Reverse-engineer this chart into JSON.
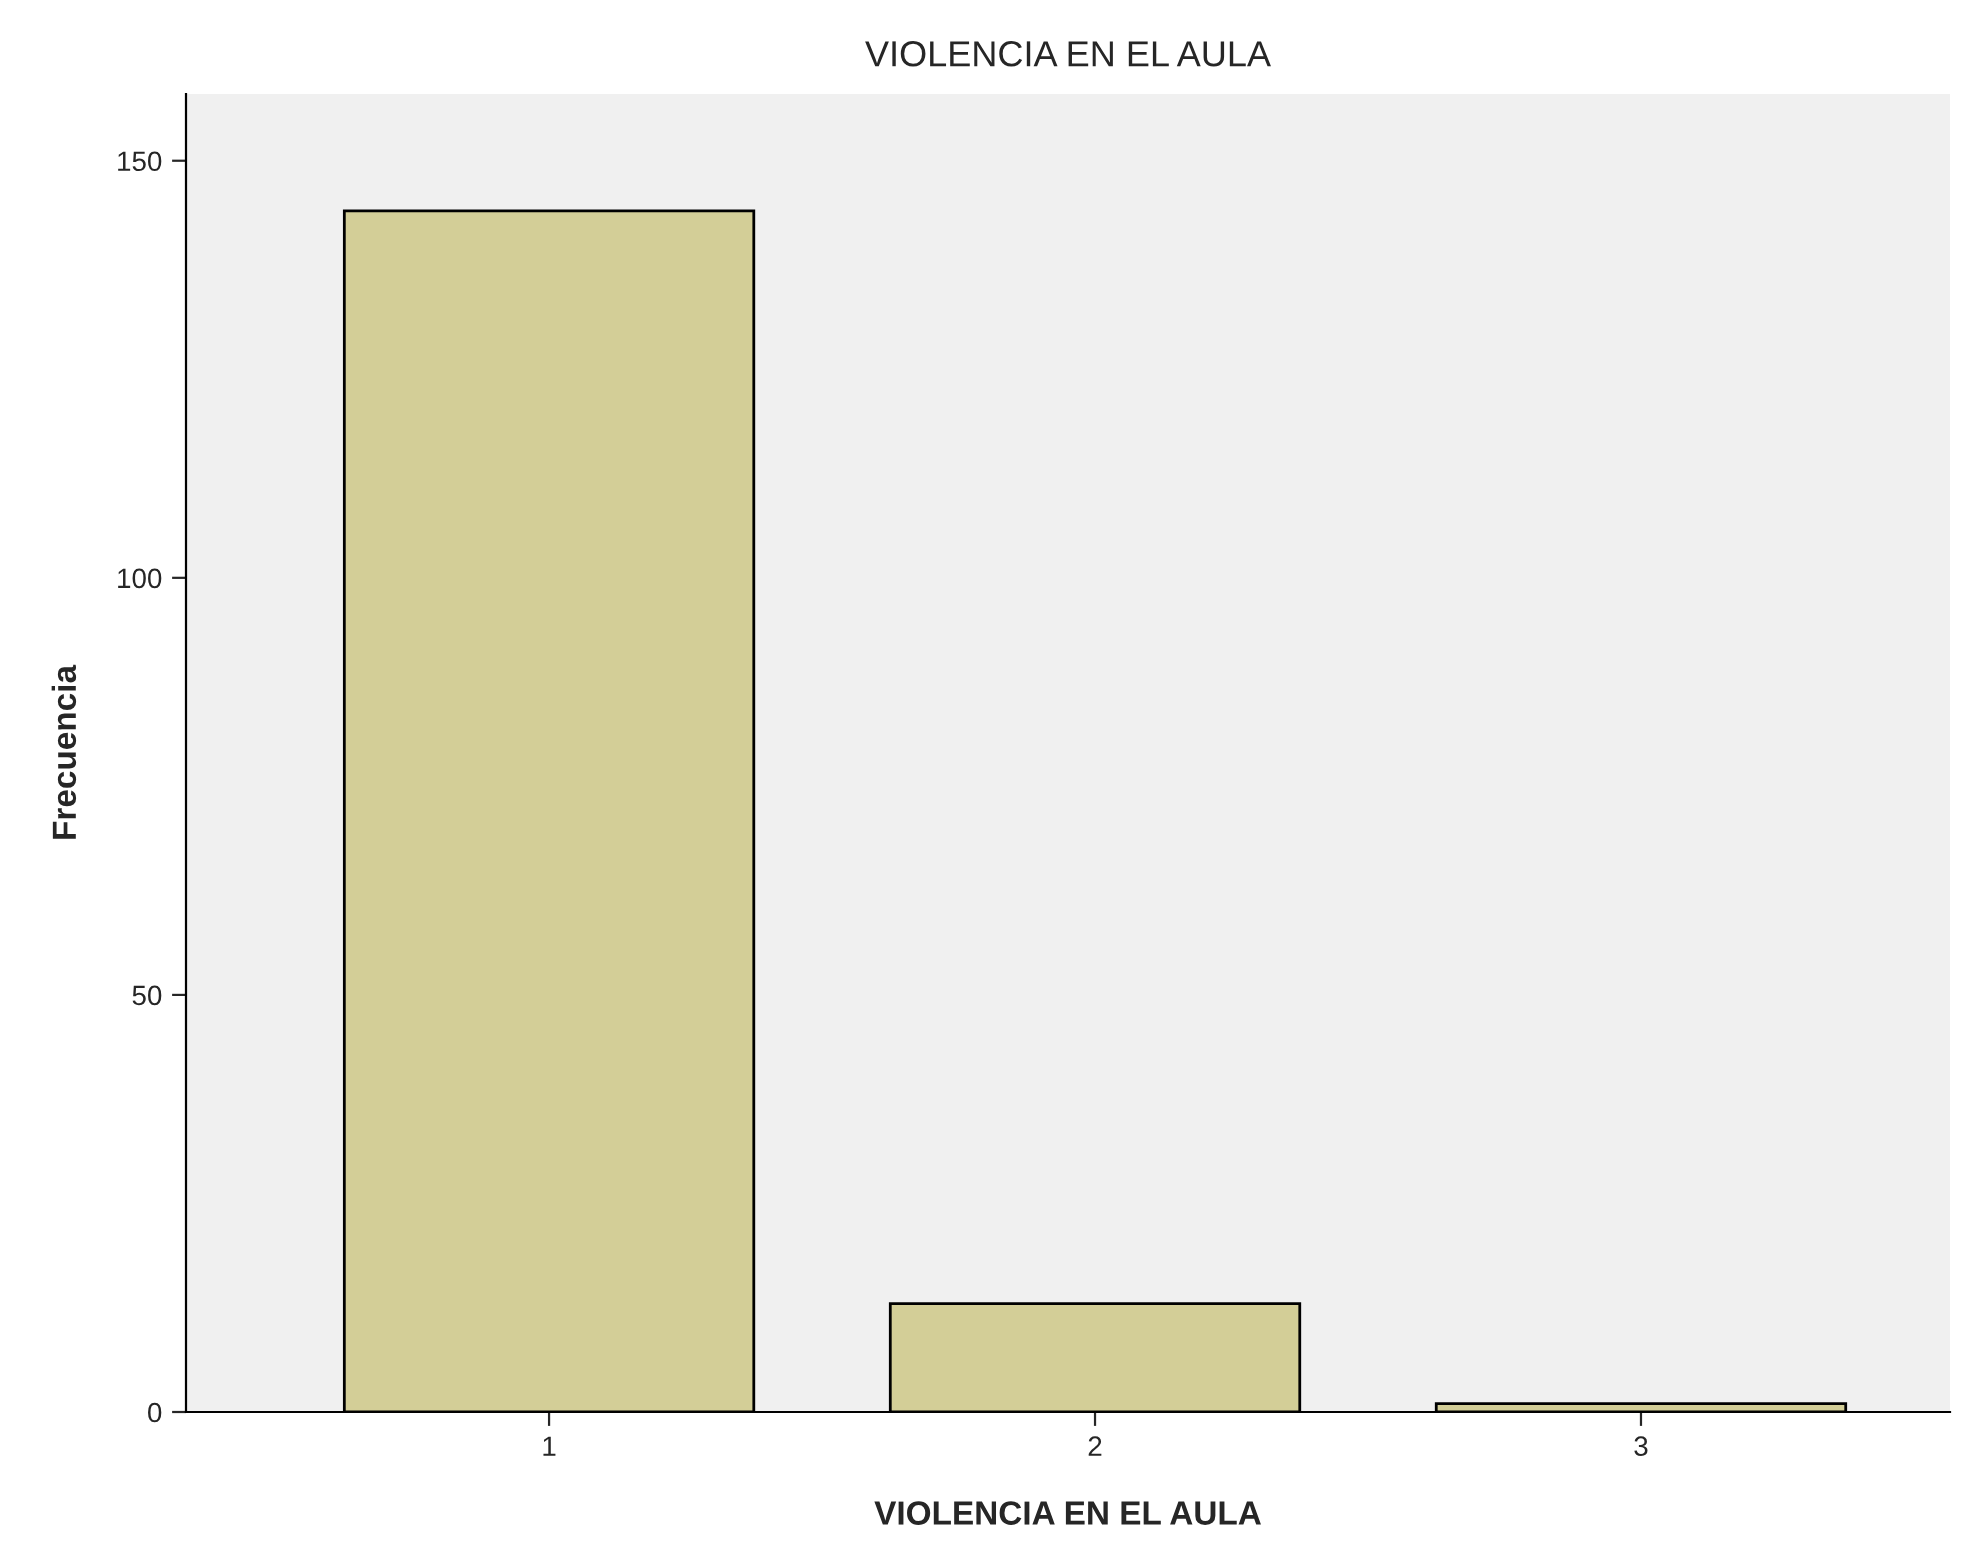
{
  "chart_data": {
    "type": "bar",
    "title": "VIOLENCIA EN EL AULA",
    "xlabel": "VIOLENCIA EN EL AULA",
    "ylabel": "Frecuencia",
    "categories": [
      "1",
      "2",
      "3"
    ],
    "values": [
      144,
      13,
      1
    ],
    "color": "#d3ce97",
    "ylim": [
      0,
      158
    ],
    "yticks": [
      0,
      50,
      100,
      150
    ],
    "grid": false
  }
}
